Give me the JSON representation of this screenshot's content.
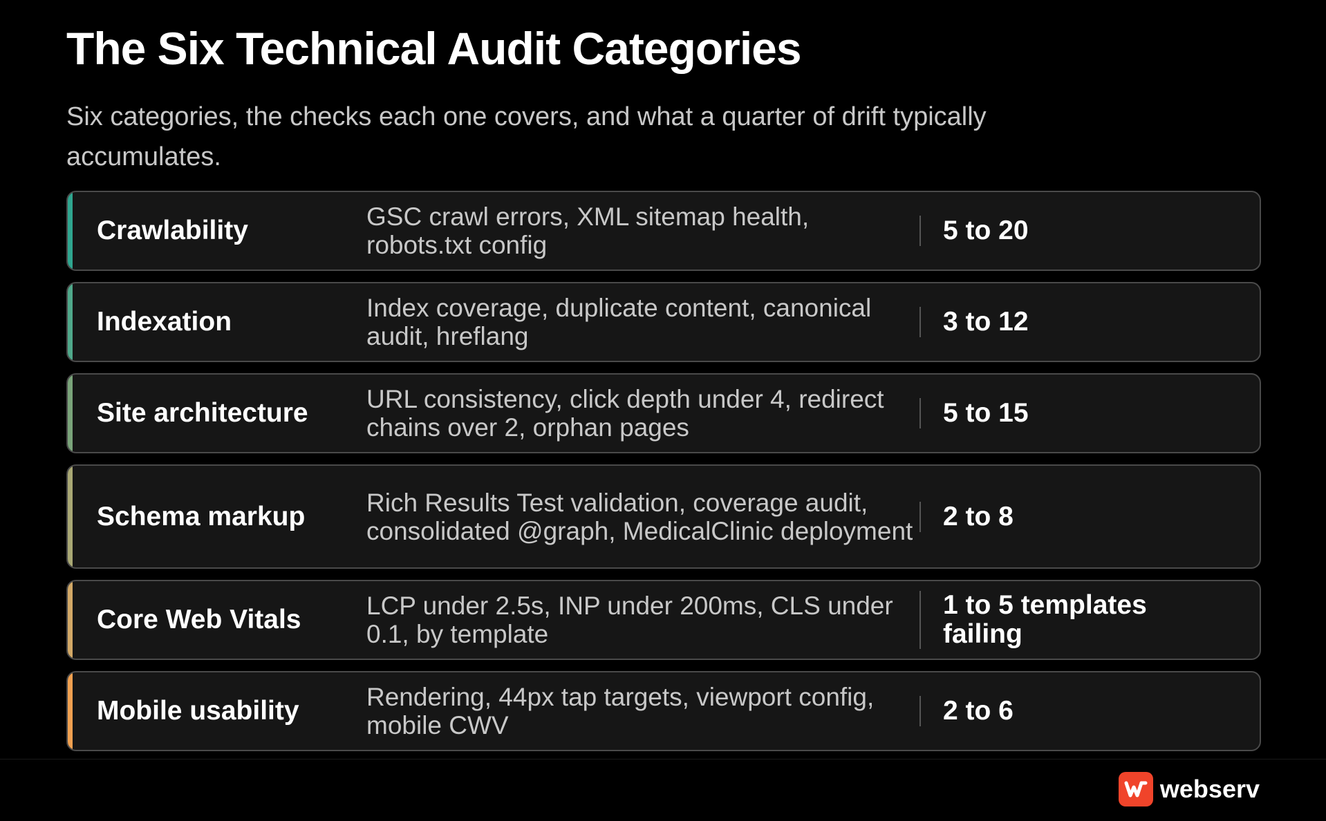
{
  "title": "The Six Technical Audit Categories",
  "subtitle": "Six categories, the checks each one covers, and what a quarter of drift typically accumulates.",
  "rows": [
    {
      "category": "Crawlability",
      "checks": "GSC crawl errors, XML sitemap health, robots.txt config",
      "count": "5 to 20",
      "accent": "#2fa58f"
    },
    {
      "category": "Indexation",
      "checks": "Index coverage, duplicate content, canonical audit, hreflang",
      "count": "3 to 12",
      "accent": "#4fa88a"
    },
    {
      "category": "Site architecture",
      "checks": "URL consistency, click depth under 4, redirect chains over 2, orphan pages",
      "count": "5 to 15",
      "accent": "#7aa47a"
    },
    {
      "category": "Schema markup",
      "checks": "Rich Results Test validation, coverage audit, consolidated @graph, MedicalClinic deployment",
      "count": "2 to 8",
      "accent": "#a9a874"
    },
    {
      "category": "Core Web Vitals",
      "checks": "LCP under 2.5s, INP under 200ms, CLS under 0.1, by template",
      "count": "1 to 5 templates failing",
      "accent": "#d2a866"
    },
    {
      "category": "Mobile usability",
      "checks": "Rendering, 44px tap targets, viewport config, mobile CWV",
      "count": "2 to 6",
      "accent": "#f0a050"
    }
  ],
  "brand": {
    "name": "webserv",
    "logo_icon": "webserv-logo-icon",
    "logo_color": "#f0442a"
  }
}
